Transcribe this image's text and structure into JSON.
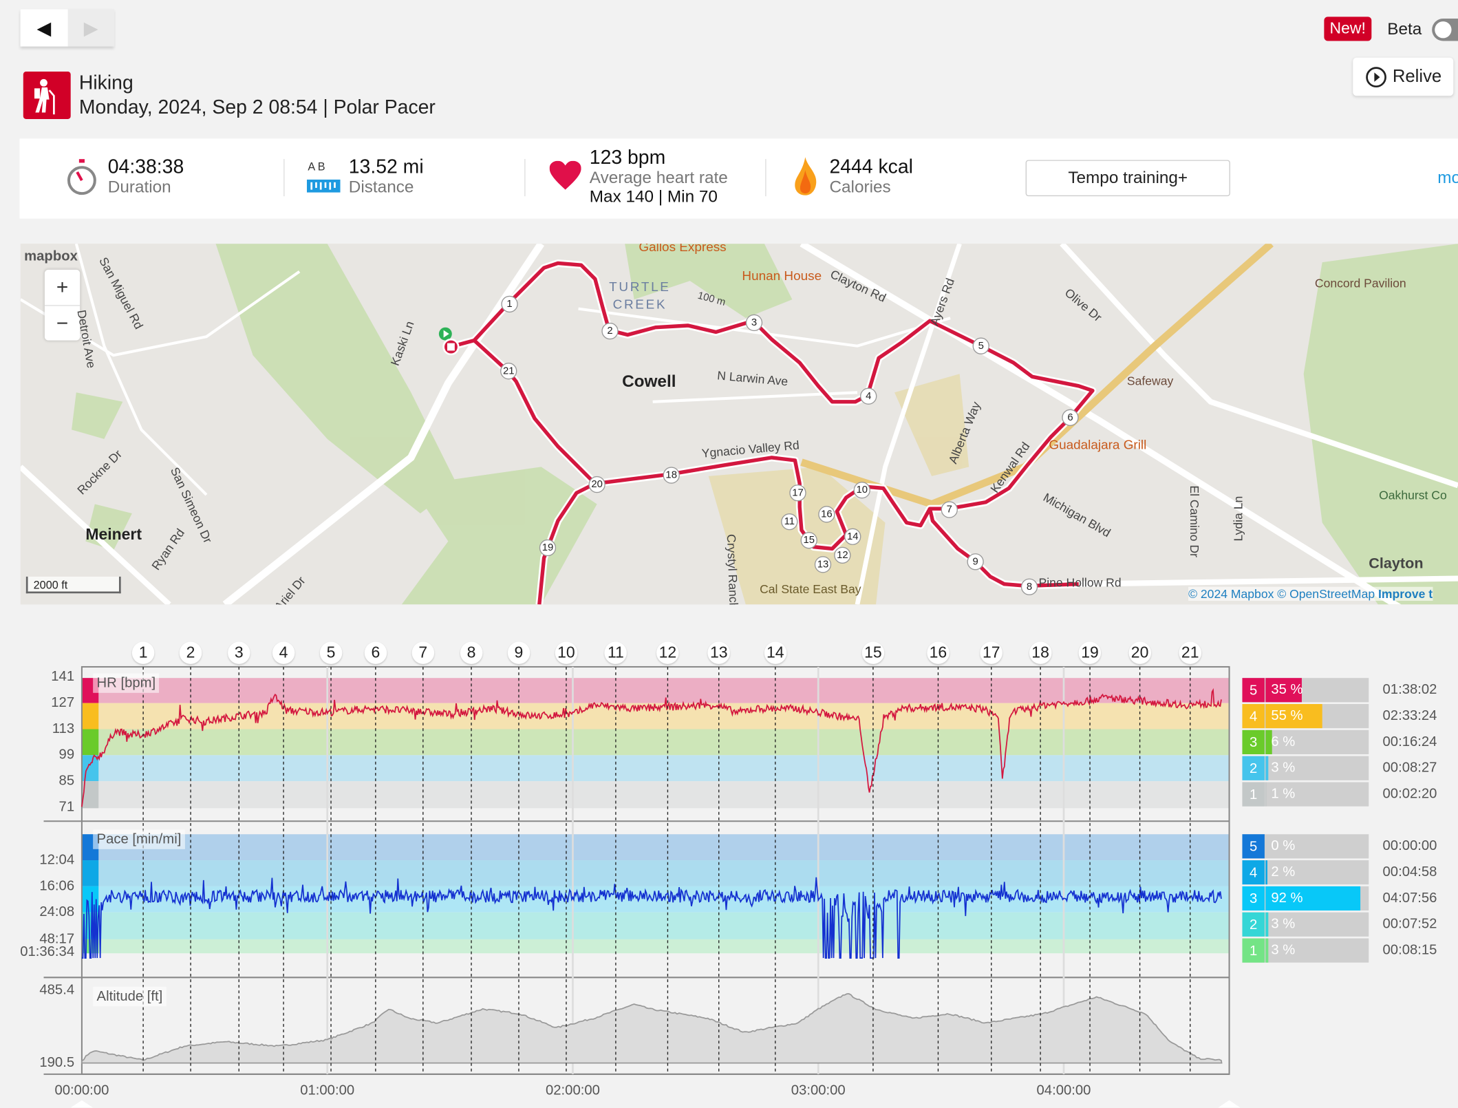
{
  "nav": {
    "back": "◀",
    "forward": "▶"
  },
  "header": {
    "new_badge": "New!",
    "beta_label": "Beta",
    "relive_label": "Relive"
  },
  "activity": {
    "sport": "Hiking",
    "subtitle": "Monday, 2024, Sep 2 08:54 | Polar Pacer"
  },
  "stats": {
    "duration": {
      "value": "04:38:38",
      "label": "Duration"
    },
    "distance": {
      "value": "13.52 mi",
      "label": "Distance",
      "ab": "A  B"
    },
    "heart_rate": {
      "value": "123 bpm",
      "label": "Average heart rate",
      "minmax": "Max 140  |  Min 70"
    },
    "calories": {
      "value": "2444 kcal",
      "label": "Calories"
    },
    "tempo_button": "Tempo training+",
    "more": "mo"
  },
  "map": {
    "logo": "mapbox",
    "zoom_in": "+",
    "zoom_out": "−",
    "scale": "2000 ft",
    "attribution": "© 2024 Mapbox © OpenStreetMap",
    "improve": "Improve t",
    "labels": {
      "gallos": "Gallos Express",
      "hunan": "Hunan House",
      "clayton": "Clayton Rd",
      "ayers": "Ayers Rd",
      "olive": "Olive Dr",
      "pavilion": "Concord Pavilion",
      "turtle": "TURTLE",
      "creek": "CREEK",
      "hundred": "100 m",
      "cowell": "Cowell",
      "larwin": "N Larwin Ave",
      "safeway": "Safeway",
      "alberta": "Alberta Way",
      "guadalajara": "Guadalajara Grill",
      "kenwal": "Kenwal Rd",
      "michigan": "Michigan Blvd",
      "elcamino": "El Camino Dr",
      "lydia": "Lydia Ln",
      "oakhurst": "Oakhurst Co",
      "ygnacio": "Ygnacio Valley Rd",
      "crystyl": "Crystyl Ranch",
      "calstate": "Cal State East Bay",
      "meinert": "Meinert",
      "rockne": "Rockne Dr",
      "simeon": "San Simeon Dr",
      "ryan": "Ryan Rd",
      "miguel": "San Miguel Rd",
      "detroit": "Detroit Ave",
      "kaski": "Kaski Ln",
      "pinehollow": "Pine Hollow Rd",
      "ariel": "Ariel Dr",
      "clayton_town": "Clayton"
    },
    "lap_markers": [
      "1",
      "2",
      "3",
      "4",
      "5",
      "6",
      "7",
      "8",
      "9",
      "10",
      "11",
      "12",
      "13",
      "14",
      "15",
      "16",
      "17",
      "18",
      "19",
      "20",
      "21"
    ]
  },
  "chart_data": {
    "type": "line",
    "x_unit": "minutes",
    "x_ticks": [
      "00:00:00",
      "01:00:00",
      "02:00:00",
      "03:00:00",
      "04:00:00"
    ],
    "x_range_minutes": [
      0,
      278.6
    ],
    "laps": [
      {
        "n": "1",
        "min": 15
      },
      {
        "n": "2",
        "min": 26.6
      },
      {
        "n": "3",
        "min": 38.4
      },
      {
        "n": "4",
        "min": 49.3
      },
      {
        "n": "5",
        "min": 60.9
      },
      {
        "n": "6",
        "min": 71.8
      },
      {
        "n": "7",
        "min": 83.4
      },
      {
        "n": "8",
        "min": 95.2
      },
      {
        "n": "9",
        "min": 106.8
      },
      {
        "n": "10",
        "min": 118.4
      },
      {
        "n": "11",
        "min": 130.5
      },
      {
        "n": "12",
        "min": 143.2
      },
      {
        "n": "13",
        "min": 155.7
      },
      {
        "n": "14",
        "min": 169.5
      },
      {
        "n": "15",
        "min": 193.4
      },
      {
        "n": "16",
        "min": 209.3
      },
      {
        "n": "17",
        "min": 222.3
      },
      {
        "n": "18",
        "min": 234.3
      },
      {
        "n": "19",
        "min": 246.4
      },
      {
        "n": "20",
        "min": 258.6
      },
      {
        "n": "21",
        "min": 270.9
      }
    ],
    "hr": {
      "label": "HR [bpm]",
      "y_ticks": [
        "141",
        "127",
        "113",
        "99",
        "85",
        "71"
      ],
      "ylim": [
        71,
        141
      ],
      "anchors": [
        [
          0,
          70
        ],
        [
          1,
          90
        ],
        [
          3,
          97
        ],
        [
          5,
          100
        ],
        [
          8,
          112
        ],
        [
          12,
          110
        ],
        [
          15,
          110
        ],
        [
          20,
          114
        ],
        [
          25,
          119
        ],
        [
          30,
          117
        ],
        [
          38,
          120
        ],
        [
          45,
          122
        ],
        [
          47,
          131
        ],
        [
          50,
          123
        ],
        [
          60,
          122
        ],
        [
          70,
          124
        ],
        [
          80,
          123
        ],
        [
          90,
          121
        ],
        [
          100,
          124
        ],
        [
          110,
          120
        ],
        [
          120,
          121
        ],
        [
          125,
          126
        ],
        [
          135,
          124
        ],
        [
          145,
          125
        ],
        [
          155,
          126
        ],
        [
          160,
          122
        ],
        [
          165,
          124
        ],
        [
          175,
          124
        ],
        [
          185,
          120
        ],
        [
          190,
          118
        ],
        [
          192.5,
          78
        ],
        [
          196,
          119
        ],
        [
          200,
          124
        ],
        [
          210,
          125
        ],
        [
          220,
          124
        ],
        [
          224,
          120
        ],
        [
          225,
          85
        ],
        [
          227,
          122
        ],
        [
          235,
          126
        ],
        [
          245,
          128
        ],
        [
          250,
          130
        ],
        [
          260,
          128
        ],
        [
          270,
          126
        ],
        [
          278.6,
          127
        ]
      ],
      "zones": [
        {
          "zone": "5",
          "pct": 35,
          "pct_label": "35 %",
          "time": "01:38:02",
          "color": "#e0105a",
          "band": "#ecaec4"
        },
        {
          "zone": "4",
          "pct": 55,
          "pct_label": "55 %",
          "time": "02:33:24",
          "color": "#f9bd1f",
          "band": "#f5e2b0"
        },
        {
          "zone": "3",
          "pct": 6,
          "pct_label": "6 %",
          "time": "00:16:24",
          "color": "#6acb2a",
          "band": "#cde6b8"
        },
        {
          "zone": "2",
          "pct": 3,
          "pct_label": "3 %",
          "time": "00:08:27",
          "color": "#45c4ec",
          "band": "#bfe3f1"
        },
        {
          "zone": "1",
          "pct": 1,
          "pct_label": "1 %",
          "time": "00:02:20",
          "color": "#c3c8c8",
          "band": "#e3e4e4"
        }
      ]
    },
    "pace": {
      "label": "Pace [min/mi]",
      "y_ticks": [
        "12:04",
        "16:06",
        "24:08",
        "48:17",
        "01:36:34"
      ],
      "speed_mph_base": 3.25,
      "dropouts_minutes": [
        [
          0,
          5
        ],
        [
          12,
          12.6
        ],
        [
          163.5,
          164.2
        ],
        [
          181,
          196
        ],
        [
          199.5,
          200.2
        ]
      ],
      "zones": [
        {
          "zone": "5",
          "pct": 0,
          "pct_label": "0 %",
          "time": "00:00:00",
          "color": "#1478d8",
          "band": "#b0d0eb"
        },
        {
          "zone": "4",
          "pct": 2,
          "pct_label": "2 %",
          "time": "00:04:58",
          "color": "#0ea8e6",
          "band": "#acdcef"
        },
        {
          "zone": "3",
          "pct": 92,
          "pct_label": "92 %",
          "time": "04:07:56",
          "color": "#08c8f8",
          "band": "#aee6f5"
        },
        {
          "zone": "2",
          "pct": 3,
          "pct_label": "3 %",
          "time": "00:07:52",
          "color": "#35d6d6",
          "band": "#b5ebe7"
        },
        {
          "zone": "1",
          "pct": 3,
          "pct_label": "3 %",
          "time": "00:08:15",
          "color": "#74e486",
          "band": "#ccefd6"
        }
      ]
    },
    "altitude": {
      "label": "Altitude [ft]",
      "y_ticks": [
        "485.4",
        "190.5"
      ],
      "ylim": [
        190.5,
        485.4
      ],
      "anchors": [
        [
          1,
          221
        ],
        [
          3,
          240
        ],
        [
          15,
          202
        ],
        [
          25,
          259
        ],
        [
          35,
          277
        ],
        [
          48,
          259
        ],
        [
          60,
          285
        ],
        [
          71,
          353
        ],
        [
          75,
          410
        ],
        [
          80,
          372
        ],
        [
          87,
          353
        ],
        [
          98,
          410
        ],
        [
          107,
          391
        ],
        [
          116,
          334
        ],
        [
          125,
          372
        ],
        [
          135,
          429
        ],
        [
          139,
          410
        ],
        [
          153,
          372
        ],
        [
          162,
          315
        ],
        [
          175,
          353
        ],
        [
          180,
          410
        ],
        [
          187,
          474
        ],
        [
          194,
          410
        ],
        [
          203,
          372
        ],
        [
          212,
          391
        ],
        [
          221,
          353
        ],
        [
          235,
          391
        ],
        [
          248,
          459
        ],
        [
          260,
          391
        ],
        [
          266,
          277
        ],
        [
          273,
          209
        ],
        [
          279,
          202
        ]
      ]
    }
  }
}
